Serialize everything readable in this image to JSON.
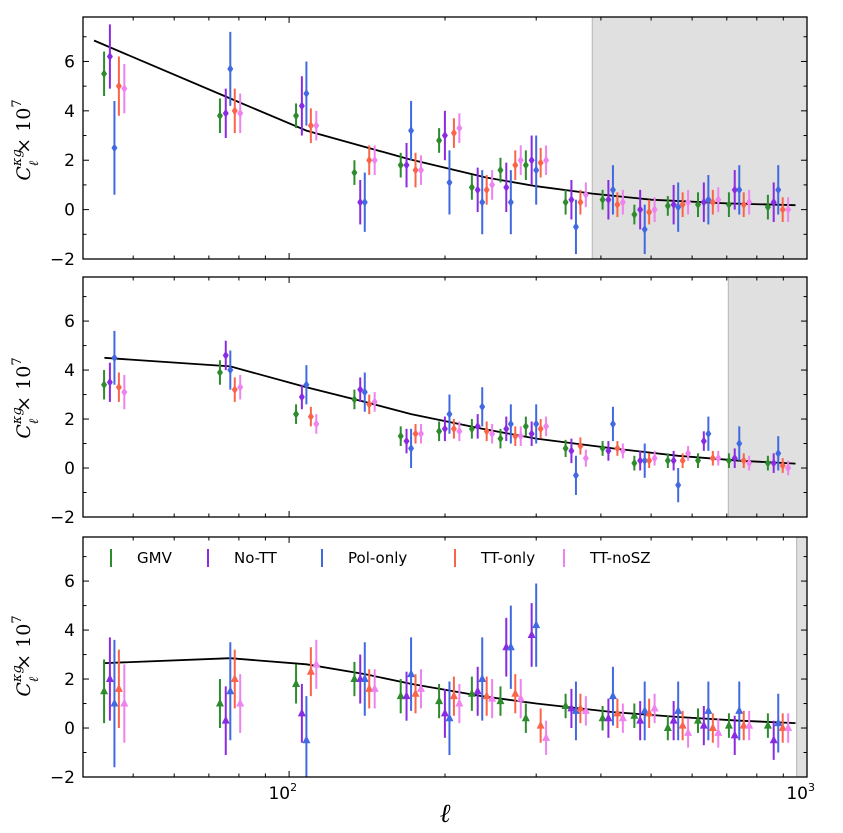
{
  "chart_data": {
    "type": "scatter",
    "x_scale": "log",
    "xlim": [
      40,
      1000
    ],
    "ylim": [
      -2,
      7.8
    ],
    "xlabel": "ℓ",
    "ylabel": {
      "main": "C",
      "sup": "κg",
      "sub": "ℓ",
      "suffix": "× 10",
      "exp": "7"
    },
    "x_tick_labels": [
      {
        "x": 100,
        "base": "10",
        "exp": "2"
      },
      {
        "x": 1000,
        "base": "10",
        "exp": "3"
      }
    ],
    "y_ticks": [
      -2,
      0,
      2,
      4,
      6
    ],
    "legend": {
      "placement": "top",
      "panel": 3,
      "entries": [
        "GMV",
        "No-TT",
        "Pol-only",
        "TT-only",
        "TT-noSZ"
      ]
    },
    "series_styles": [
      {
        "name": "GMV",
        "color": "#2e8b2e"
      },
      {
        "name": "No-TT",
        "color": "#8a2be2"
      },
      {
        "name": "Pol-only",
        "color": "#4169e1"
      },
      {
        "name": "TT-only",
        "color": "#fa6448"
      },
      {
        "name": "TT-noSZ",
        "color": "#ee82ee"
      }
    ],
    "ell": [
      46,
      77,
      108,
      140,
      172,
      204,
      236,
      268,
      300,
      358,
      422,
      486,
      564,
      645,
      740,
      880
    ],
    "offsets": [
      0.955,
      0.98,
      1.0,
      1.02,
      1.045
    ],
    "panels": [
      {
        "marker": "diamond",
        "shade_from": 385,
        "theory": [
          [
            42,
            6.85
          ],
          [
            77,
            4.5
          ],
          [
            108,
            3.2
          ],
          [
            170,
            2.05
          ],
          [
            240,
            1.3
          ],
          [
            300,
            0.95
          ],
          [
            385,
            0.65
          ],
          [
            500,
            0.4
          ],
          [
            700,
            0.25
          ],
          [
            950,
            0.18
          ]
        ],
        "series": [
          {
            "name": "GMV",
            "y": [
              5.5,
              3.8,
              3.8,
              1.5,
              1.8,
              2.8,
              0.9,
              1.6,
              1.8,
              0.3,
              0.4,
              -0.2,
              0.15,
              0.2,
              0.2,
              0.1
            ],
            "err": [
              0.9,
              0.7,
              0.5,
              0.5,
              0.5,
              0.5,
              0.5,
              0.5,
              0.6,
              0.5,
              0.4,
              0.4,
              0.4,
              0.5,
              0.5,
              0.5
            ]
          },
          {
            "name": "No-TT",
            "y": [
              6.2,
              3.9,
              4.2,
              0.3,
              1.8,
              3.0,
              0.8,
              0.9,
              2.0,
              0.4,
              0.4,
              0.0,
              0.2,
              0.3,
              0.8,
              0.3
            ],
            "err": [
              1.3,
              1.0,
              1.2,
              0.9,
              0.9,
              1.0,
              0.9,
              1.0,
              1.0,
              0.8,
              0.8,
              0.8,
              0.8,
              0.8,
              0.8,
              0.8
            ]
          },
          {
            "name": "Pol-only",
            "y": [
              2.5,
              5.7,
              4.7,
              0.3,
              3.2,
              1.1,
              0.3,
              0.3,
              1.6,
              -0.7,
              0.8,
              -0.8,
              0.1,
              0.4,
              0.8,
              0.8
            ],
            "err": [
              1.9,
              1.5,
              1.3,
              1.2,
              1.2,
              1.3,
              1.3,
              1.3,
              1.4,
              1.1,
              1.0,
              1.0,
              1.0,
              1.0,
              1.0,
              1.0
            ]
          },
          {
            "name": "TT-only",
            "y": [
              5.0,
              4.0,
              3.4,
              2.0,
              1.6,
              3.1,
              0.8,
              1.8,
              1.9,
              0.3,
              0.2,
              -0.1,
              0.2,
              0.3,
              0.2,
              0.0
            ],
            "err": [
              1.2,
              0.9,
              0.7,
              0.6,
              0.7,
              0.6,
              0.6,
              0.6,
              0.6,
              0.5,
              0.5,
              0.5,
              0.5,
              0.5,
              0.5,
              0.5
            ]
          },
          {
            "name": "TT-noSZ",
            "y": [
              4.9,
              3.9,
              3.4,
              2.0,
              1.6,
              3.3,
              1.0,
              2.0,
              2.0,
              0.6,
              0.3,
              0.0,
              0.3,
              0.4,
              0.3,
              0.0
            ],
            "err": [
              1.0,
              0.8,
              0.6,
              0.6,
              0.6,
              0.6,
              0.6,
              0.6,
              0.6,
              0.5,
              0.5,
              0.5,
              0.5,
              0.5,
              0.5,
              0.5
            ]
          }
        ]
      },
      {
        "marker": "diamond",
        "shade_from": 705,
        "theory": [
          [
            44,
            4.5
          ],
          [
            77,
            4.15
          ],
          [
            108,
            3.3
          ],
          [
            140,
            2.7
          ],
          [
            172,
            2.2
          ],
          [
            236,
            1.6
          ],
          [
            300,
            1.2
          ],
          [
            422,
            0.8
          ],
          [
            564,
            0.5
          ],
          [
            740,
            0.3
          ],
          [
            950,
            0.18
          ]
        ],
        "series": [
          {
            "name": "GMV",
            "y": [
              3.4,
              3.9,
              2.2,
              2.8,
              1.3,
              1.5,
              1.6,
              1.2,
              1.7,
              0.8,
              0.8,
              0.2,
              0.3,
              0.3,
              0.3,
              0.2
            ],
            "err": [
              0.6,
              0.5,
              0.4,
              0.4,
              0.4,
              0.4,
              0.4,
              0.4,
              0.4,
              0.35,
              0.3,
              0.3,
              0.3,
              0.3,
              0.3,
              0.3
            ]
          },
          {
            "name": "No-TT",
            "y": [
              3.5,
              4.6,
              2.9,
              3.2,
              1.1,
              1.6,
              1.7,
              1.6,
              1.4,
              0.7,
              0.7,
              0.3,
              0.3,
              1.1,
              0.4,
              0.2
            ],
            "err": [
              0.8,
              0.6,
              0.5,
              0.5,
              0.5,
              0.5,
              0.5,
              0.5,
              0.5,
              0.5,
              0.4,
              0.4,
              0.4,
              0.4,
              0.4,
              0.4
            ]
          },
          {
            "name": "Pol-only",
            "y": [
              4.5,
              4.0,
              3.4,
              3.1,
              0.8,
              2.2,
              2.5,
              1.8,
              1.8,
              -0.3,
              1.8,
              0.3,
              -0.7,
              1.4,
              1.0,
              0.6
            ],
            "err": [
              1.1,
              0.8,
              0.8,
              0.8,
              0.8,
              0.8,
              0.8,
              0.8,
              0.8,
              0.8,
              0.7,
              0.7,
              0.7,
              0.7,
              0.7,
              0.7
            ]
          },
          {
            "name": "TT-only",
            "y": [
              3.3,
              3.2,
              2.1,
              2.6,
              1.4,
              1.6,
              1.5,
              1.3,
              1.6,
              0.9,
              0.8,
              0.3,
              0.3,
              0.4,
              0.3,
              0.1
            ],
            "err": [
              0.6,
              0.5,
              0.4,
              0.4,
              0.4,
              0.4,
              0.4,
              0.4,
              0.4,
              0.35,
              0.3,
              0.3,
              0.3,
              0.3,
              0.3,
              0.3
            ]
          },
          {
            "name": "TT-noSZ",
            "y": [
              3.1,
              3.3,
              1.8,
              2.7,
              1.4,
              1.5,
              1.4,
              1.3,
              1.7,
              0.4,
              0.7,
              0.4,
              0.6,
              0.4,
              0.2,
              0.0
            ],
            "err": [
              0.7,
              0.5,
              0.4,
              0.4,
              0.4,
              0.4,
              0.4,
              0.4,
              0.4,
              0.35,
              0.3,
              0.3,
              0.3,
              0.3,
              0.3,
              0.3
            ]
          }
        ]
      },
      {
        "marker": "triangle",
        "shade_from": 955,
        "theory": [
          [
            44,
            2.65
          ],
          [
            77,
            2.85
          ],
          [
            108,
            2.6
          ],
          [
            140,
            2.2
          ],
          [
            172,
            1.8
          ],
          [
            236,
            1.3
          ],
          [
            300,
            1.0
          ],
          [
            422,
            0.65
          ],
          [
            564,
            0.45
          ],
          [
            740,
            0.3
          ],
          [
            950,
            0.2
          ]
        ],
        "series": [
          {
            "name": "GMV",
            "y": [
              1.5,
              1.0,
              1.8,
              2.0,
              1.3,
              1.1,
              1.4,
              1.1,
              0.4,
              0.9,
              0.4,
              0.5,
              0.0,
              0.3,
              0.1,
              0.1
            ],
            "err": [
              1.3,
              1.0,
              0.8,
              0.7,
              0.7,
              0.7,
              0.7,
              0.6,
              0.6,
              0.5,
              0.5,
              0.5,
              0.5,
              0.5,
              0.5,
              0.5
            ]
          },
          {
            "name": "No-TT",
            "y": [
              2.0,
              0.3,
              0.6,
              2.0,
              1.3,
              0.6,
              1.5,
              3.3,
              3.8,
              0.8,
              0.4,
              0.3,
              0.3,
              0.1,
              -0.3,
              -0.5
            ],
            "err": [
              1.7,
              1.4,
              1.2,
              1.0,
              1.0,
              1.0,
              1.0,
              1.2,
              1.3,
              0.8,
              0.8,
              0.8,
              0.8,
              0.8,
              0.8,
              0.8
            ]
          },
          {
            "name": "Pol-only",
            "y": [
              1.0,
              1.5,
              -0.5,
              2.0,
              2.2,
              0.4,
              2.0,
              3.3,
              4.2,
              0.7,
              1.3,
              0.7,
              0.7,
              0.7,
              0.7,
              0.2
            ],
            "err": [
              2.6,
              2.0,
              1.8,
              1.5,
              1.5,
              1.5,
              1.7,
              1.7,
              1.7,
              1.2,
              1.2,
              1.2,
              1.2,
              1.2,
              1.2,
              1.2
            ]
          },
          {
            "name": "TT-only",
            "y": [
              1.6,
              2.0,
              2.3,
              1.6,
              1.4,
              1.3,
              1.3,
              1.4,
              0.1,
              0.8,
              0.6,
              0.6,
              0.1,
              0.0,
              0.1,
              0.0
            ],
            "err": [
              1.6,
              1.2,
              1.0,
              0.8,
              0.8,
              0.8,
              0.8,
              0.8,
              0.7,
              0.6,
              0.6,
              0.6,
              0.6,
              0.6,
              0.6,
              0.6
            ]
          },
          {
            "name": "TT-noSZ",
            "y": [
              1.0,
              1.0,
              2.6,
              1.6,
              1.6,
              1.0,
              1.2,
              1.2,
              -0.4,
              0.7,
              0.4,
              0.8,
              -0.2,
              -0.2,
              0.1,
              0.0
            ],
            "err": [
              1.6,
              1.2,
              1.0,
              0.8,
              0.8,
              0.8,
              0.8,
              0.8,
              0.7,
              0.6,
              0.6,
              0.6,
              0.6,
              0.6,
              0.6,
              0.6
            ]
          }
        ]
      }
    ]
  }
}
